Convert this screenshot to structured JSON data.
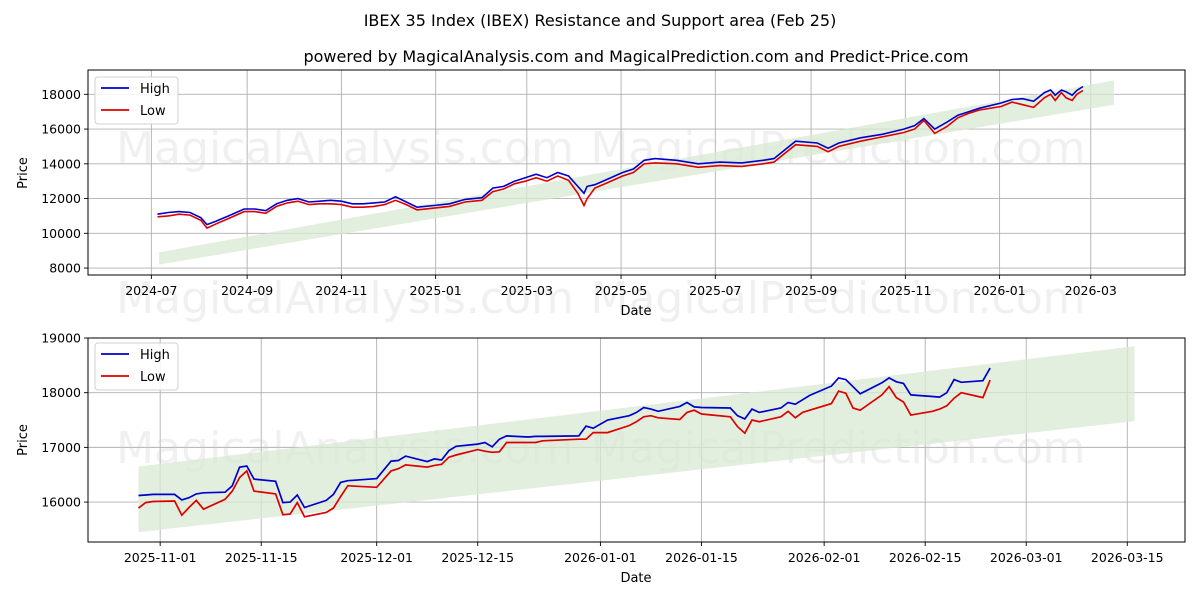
{
  "figure": {
    "title": "IBEX 35 Index (IBEX) Resistance and Support area (Feb 25)",
    "subtitle": "powered by MagicalAnalysis.com and MagicalPrediction.com and Predict-Price.com",
    "watermarks": [
      "MagicalAnalysis.com",
      "MagicalPrediction.com"
    ],
    "colors": {
      "high": "#0000cc",
      "low": "#dd0000",
      "band": "#d9ead3",
      "grid": "#b0b0b0"
    }
  },
  "chart_data": [
    {
      "type": "line",
      "panel": "top",
      "title": "",
      "xlabel": "Date",
      "ylabel": "Price",
      "x_ticks": [
        "2024-07",
        "2024-09",
        "2024-11",
        "2025-01",
        "2025-03",
        "2025-05",
        "2025-07",
        "2025-09",
        "2025-11",
        "2026-01",
        "2026-03"
      ],
      "y_ticks": [
        8000,
        10000,
        12000,
        14000,
        16000,
        18000
      ],
      "ylim": [
        7600,
        19400
      ],
      "xlim": [
        "2024-05-21",
        "2026-05-01"
      ],
      "grid": true,
      "legend": {
        "position": "upper left",
        "entries": [
          "High",
          "Low"
        ]
      },
      "band": {
        "label": "Resistance/Support area",
        "x": [
          "2024-07-06",
          "2026-03-16"
        ],
        "upper": [
          8900,
          18800
        ],
        "lower": [
          8200,
          17400
        ]
      },
      "x": [
        "2024-07-05",
        "2024-07-12",
        "2024-07-19",
        "2024-07-26",
        "2024-08-02",
        "2024-08-06",
        "2024-08-12",
        "2024-08-20",
        "2024-08-30",
        "2024-09-06",
        "2024-09-13",
        "2024-09-20",
        "2024-09-27",
        "2024-10-04",
        "2024-10-11",
        "2024-10-18",
        "2024-10-25",
        "2024-11-01",
        "2024-11-08",
        "2024-11-15",
        "2024-11-22",
        "2024-11-29",
        "2024-12-06",
        "2024-12-13",
        "2024-12-20",
        "2024-12-31",
        "2025-01-10",
        "2025-01-20",
        "2025-01-31",
        "2025-02-07",
        "2025-02-14",
        "2025-02-21",
        "2025-02-28",
        "2025-03-07",
        "2025-03-14",
        "2025-03-21",
        "2025-03-28",
        "2025-04-03",
        "2025-04-07",
        "2025-04-09",
        "2025-04-14",
        "2025-04-22",
        "2025-05-02",
        "2025-05-09",
        "2025-05-16",
        "2025-05-23",
        "2025-06-06",
        "2025-06-20",
        "2025-07-04",
        "2025-07-18",
        "2025-08-01",
        "2025-08-08",
        "2025-08-15",
        "2025-08-22",
        "2025-09-05",
        "2025-09-12",
        "2025-09-19",
        "2025-10-03",
        "2025-10-17",
        "2025-10-31",
        "2025-11-07",
        "2025-11-13",
        "2025-11-20",
        "2025-11-28",
        "2025-12-05",
        "2025-12-12",
        "2025-12-19",
        "2026-01-02",
        "2026-01-09",
        "2026-01-16",
        "2026-01-23",
        "2026-01-30",
        "2026-02-03",
        "2026-02-06",
        "2026-02-10",
        "2026-02-13",
        "2026-02-17",
        "2026-02-20",
        "2026-02-24"
      ],
      "series": [
        {
          "name": "High",
          "color": "#0000cc",
          "values": [
            11100,
            11200,
            11250,
            11200,
            10900,
            10500,
            10700,
            11000,
            11400,
            11400,
            11300,
            11700,
            11900,
            12000,
            11800,
            11850,
            11900,
            11850,
            11700,
            11700,
            11750,
            11800,
            12100,
            11800,
            11500,
            11600,
            11700,
            11950,
            12050,
            12600,
            12700,
            13000,
            13200,
            13400,
            13200,
            13500,
            13300,
            12700,
            12300,
            12700,
            12800,
            13100,
            13500,
            13700,
            14200,
            14300,
            14200,
            14000,
            14100,
            14050,
            14200,
            14300,
            14800,
            15300,
            15200,
            14900,
            15200,
            15500,
            15700,
            16000,
            16200,
            16600,
            16000,
            16400,
            16800,
            17000,
            17200,
            17500,
            17700,
            17750,
            17600,
            18100,
            18250,
            17950,
            18250,
            18150,
            17950,
            18220,
            18450
          ]
        },
        {
          "name": "Low",
          "color": "#dd0000",
          "values": [
            10950,
            11000,
            11100,
            11050,
            10750,
            10300,
            10550,
            10850,
            11250,
            11250,
            11150,
            11550,
            11750,
            11850,
            11650,
            11700,
            11700,
            11650,
            11500,
            11500,
            11550,
            11650,
            11900,
            11650,
            11350,
            11450,
            11550,
            11800,
            11900,
            12400,
            12550,
            12850,
            13000,
            13200,
            13000,
            13300,
            13050,
            12300,
            11600,
            12000,
            12600,
            12900,
            13300,
            13500,
            14000,
            14050,
            14000,
            13800,
            13900,
            13850,
            14000,
            14100,
            14600,
            15100,
            15000,
            14700,
            15000,
            15300,
            15550,
            15800,
            16000,
            16500,
            15750,
            16150,
            16650,
            16900,
            17100,
            17300,
            17550,
            17400,
            17250,
            17800,
            18000,
            17650,
            18100,
            17800,
            17650,
            18000,
            18220
          ]
        }
      ]
    },
    {
      "type": "line",
      "panel": "bottom",
      "title": "",
      "xlabel": "Date",
      "ylabel": "Price",
      "x_ticks": [
        "2025-11-01",
        "2025-11-15",
        "2025-12-01",
        "2025-12-15",
        "2026-01-01",
        "2026-01-15",
        "2026-02-01",
        "2026-02-15",
        "2026-03-01",
        "2026-03-15"
      ],
      "y_ticks": [
        16000,
        17000,
        18000,
        19000
      ],
      "ylim": [
        15270,
        19000
      ],
      "xlim": [
        "2025-10-22",
        "2026-03-23"
      ],
      "grid": true,
      "legend": {
        "position": "upper left",
        "entries": [
          "High",
          "Low"
        ]
      },
      "band": {
        "label": "Resistance/Support area",
        "x": [
          "2025-10-29",
          "2026-03-16"
        ],
        "upper": [
          16650,
          18850
        ],
        "lower": [
          15450,
          17480
        ]
      },
      "x": [
        "2025-10-29",
        "2025-10-30",
        "2025-10-31",
        "2025-11-03",
        "2025-11-04",
        "2025-11-05",
        "2025-11-06",
        "2025-11-07",
        "2025-11-10",
        "2025-11-11",
        "2025-11-12",
        "2025-11-13",
        "2025-11-14",
        "2025-11-17",
        "2025-11-18",
        "2025-11-19",
        "2025-11-20",
        "2025-11-21",
        "2025-11-24",
        "2025-11-25",
        "2025-11-26",
        "2025-11-27",
        "2025-11-28",
        "2025-12-01",
        "2025-12-02",
        "2025-12-03",
        "2025-12-04",
        "2025-12-05",
        "2025-12-08",
        "2025-12-09",
        "2025-12-10",
        "2025-12-11",
        "2025-12-12",
        "2025-12-15",
        "2025-12-16",
        "2025-12-17",
        "2025-12-18",
        "2025-12-19",
        "2025-12-22",
        "2025-12-23",
        "2025-12-24",
        "2025-12-29",
        "2025-12-30",
        "2025-12-31",
        "2026-01-02",
        "2026-01-05",
        "2026-01-06",
        "2026-01-07",
        "2026-01-08",
        "2026-01-09",
        "2026-01-12",
        "2026-01-13",
        "2026-01-14",
        "2026-01-15",
        "2026-01-19",
        "2026-01-20",
        "2026-01-21",
        "2026-01-22",
        "2026-01-23",
        "2026-01-26",
        "2026-01-27",
        "2026-01-28",
        "2026-01-29",
        "2026-01-30",
        "2026-02-02",
        "2026-02-03",
        "2026-02-04",
        "2026-02-05",
        "2026-02-06",
        "2026-02-09",
        "2026-02-10",
        "2026-02-11",
        "2026-02-12",
        "2026-02-13",
        "2026-02-16",
        "2026-02-17",
        "2026-02-18",
        "2026-02-19",
        "2026-02-20",
        "2026-02-23",
        "2026-02-24"
      ],
      "series": [
        {
          "name": "High",
          "color": "#0000cc",
          "values": [
            16120,
            16130,
            16140,
            16140,
            16040,
            16080,
            16150,
            16170,
            16180,
            16300,
            16640,
            16660,
            16420,
            16380,
            15990,
            16000,
            16130,
            15900,
            16030,
            16140,
            16360,
            16390,
            16400,
            16430,
            16590,
            16750,
            16760,
            16840,
            16740,
            16790,
            16770,
            16940,
            17020,
            17060,
            17090,
            17010,
            17150,
            17210,
            17190,
            17200,
            17200,
            17210,
            17390,
            17350,
            17500,
            17580,
            17640,
            17730,
            17700,
            17660,
            17750,
            17820,
            17740,
            17730,
            17720,
            17580,
            17520,
            17700,
            17640,
            17720,
            17820,
            17790,
            17870,
            17950,
            18120,
            18270,
            18240,
            18110,
            17980,
            18180,
            18270,
            18200,
            18170,
            17960,
            17930,
            17920,
            18000,
            18240,
            18190,
            18220,
            18450
          ]
        },
        {
          "name": "Low",
          "color": "#dd0000",
          "values": [
            15890,
            15990,
            16010,
            16020,
            15760,
            15900,
            16030,
            15870,
            16050,
            16200,
            16450,
            16570,
            16200,
            16150,
            15770,
            15780,
            15990,
            15730,
            15810,
            15890,
            16100,
            16300,
            16290,
            16270,
            16420,
            16570,
            16610,
            16680,
            16640,
            16670,
            16690,
            16820,
            16860,
            16960,
            16930,
            16910,
            16920,
            17090,
            17090,
            17090,
            17120,
            17150,
            17150,
            17270,
            17270,
            17400,
            17470,
            17560,
            17580,
            17540,
            17510,
            17640,
            17680,
            17610,
            17560,
            17380,
            17260,
            17500,
            17470,
            17560,
            17660,
            17540,
            17640,
            17680,
            17800,
            18030,
            17990,
            17720,
            17680,
            17960,
            18110,
            17910,
            17830,
            17590,
            17660,
            17700,
            17760,
            17900,
            18000,
            17910,
            18230
          ]
        }
      ]
    }
  ]
}
